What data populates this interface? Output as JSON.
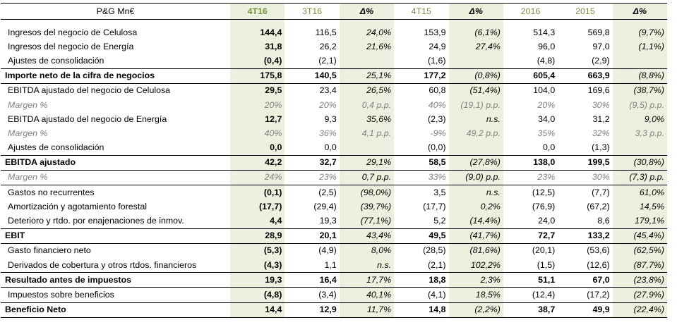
{
  "header": [
    "P&G Mn€",
    "4T16",
    "3T16",
    "Δ%",
    "4T15",
    "Δ%",
    "2016",
    "2015",
    "Δ%"
  ],
  "rows": [
    {
      "label": "Ingresos del negocio de Celulosa",
      "cells": [
        "144,4",
        "116,5",
        "24,0%",
        "153,9",
        "(6,1%)",
        "514,3",
        "569,8",
        "(9,7%)"
      ]
    },
    {
      "label": "Ingresos del negocio de Energía",
      "cells": [
        "31,8",
        "26,2",
        "21,6%",
        "24,9",
        "27,4%",
        "96,0",
        "97,0",
        "(1,1%)"
      ]
    },
    {
      "label": "Ajustes de consolidación",
      "cells": [
        "(0,4)",
        "(2,1)",
        "",
        "(1,6)",
        "",
        "(4,8)",
        "(2,9)",
        ""
      ]
    },
    {
      "label": "Importe neto de la cifra de negocios",
      "cells": [
        "175,8",
        "140,5",
        "25,1%",
        "177,2",
        "(0,8%)",
        "605,4",
        "663,9",
        "(8,8%)"
      ]
    },
    {
      "label": "EBITDA ajustado del negocio de Celulosa",
      "cells": [
        "29,5",
        "23,4",
        "26,5%",
        "60,8",
        "(51,4%)",
        "104,0",
        "169,6",
        "(38,7%)"
      ]
    },
    {
      "label": "Margen %",
      "cells": [
        "20%",
        "20%",
        "0,4 p.p.",
        "40%",
        "(19,1) p.p.",
        "20%",
        "30%",
        "(9,5) p.p."
      ]
    },
    {
      "label": "EBITDA ajustado del negocio de Energía",
      "cells": [
        "12,7",
        "9,3",
        "35,6%",
        "(2,3)",
        "n.s.",
        "34,0",
        "31,2",
        "9,0%"
      ]
    },
    {
      "label": "Margen %",
      "cells": [
        "40%",
        "36%",
        "4,1 p.p.",
        "-9%",
        "49,2 p.p.",
        "35%",
        "32%",
        "3,3 p.p."
      ]
    },
    {
      "label": "Ajustes de consolidación",
      "cells": [
        "0,0",
        "0,0",
        "",
        "(0,0)",
        "",
        "0,0",
        "(1,3)",
        ""
      ]
    },
    {
      "label": "EBITDA ajustado",
      "cells": [
        "42,2",
        "32,7",
        "29,1%",
        "58,5",
        "(27,8%)",
        "138,0",
        "199,5",
        "(30,8%)"
      ]
    },
    {
      "label": "Margen %",
      "cells": [
        "24%",
        "23%",
        "0,7 p.p.",
        "33%",
        "(9,0) p.p.",
        "23%",
        "30%",
        "(7,3) p.p."
      ]
    },
    {
      "label": "Gastos no recurrentes",
      "cells": [
        "(0,1)",
        "(2,5)",
        "(98,0%)",
        "3,5",
        "n.s.",
        "(12,5)",
        "(7,7)",
        "61,0%"
      ]
    },
    {
      "label": "Amortización y agotamiento forestal",
      "cells": [
        "(17,7)",
        "(29,4)",
        "(39,7%)",
        "(17,7)",
        "0,2%",
        "(76,9)",
        "(67,2)",
        "14,5%"
      ]
    },
    {
      "label": "Deterioro y rtdo. por enajenaciones de inmov.",
      "cells": [
        "4,4",
        "19,3",
        "(77,1%)",
        "5,2",
        "(14,4%)",
        "24,0",
        "8,6",
        "179,1%"
      ]
    },
    {
      "label": "EBIT",
      "cells": [
        "28,9",
        "20,1",
        "43,4%",
        "49,5",
        "(41,7%)",
        "72,7",
        "133,2",
        "(45,4%)"
      ]
    },
    {
      "label": "Gasto financiero neto",
      "cells": [
        "(5,3)",
        "(4,9)",
        "8,0%",
        "(28,5)",
        "(81,6%)",
        "(20,1)",
        "(53,6)",
        "(62,5%)"
      ]
    },
    {
      "label": "Derivados de cobertura y otros rtdos. financieros",
      "cells": [
        "(4,3)",
        "1,1",
        "n.s.",
        "(2,1)",
        "102,2%",
        "(1,5)",
        "(12,6)",
        "(87,7%)"
      ]
    },
    {
      "label": "Resultado antes de impuestos",
      "cells": [
        "19,3",
        "16,4",
        "17,7%",
        "18,8",
        "2,3%",
        "51,1",
        "67,0",
        "(23,8%)"
      ]
    },
    {
      "label": "Impuestos sobre beneficios",
      "cells": [
        "(4,8)",
        "(3,4)",
        "40,1%",
        "(4,1)",
        "18,5%",
        "(12,4)",
        "(17,2)",
        "(27,9%)"
      ]
    },
    {
      "label": "Beneficio Neto",
      "cells": [
        "14,4",
        "12,9",
        "11,7%",
        "14,8",
        "(2,2%)",
        "38,7",
        "49,9",
        "(22,4%)"
      ]
    }
  ]
}
